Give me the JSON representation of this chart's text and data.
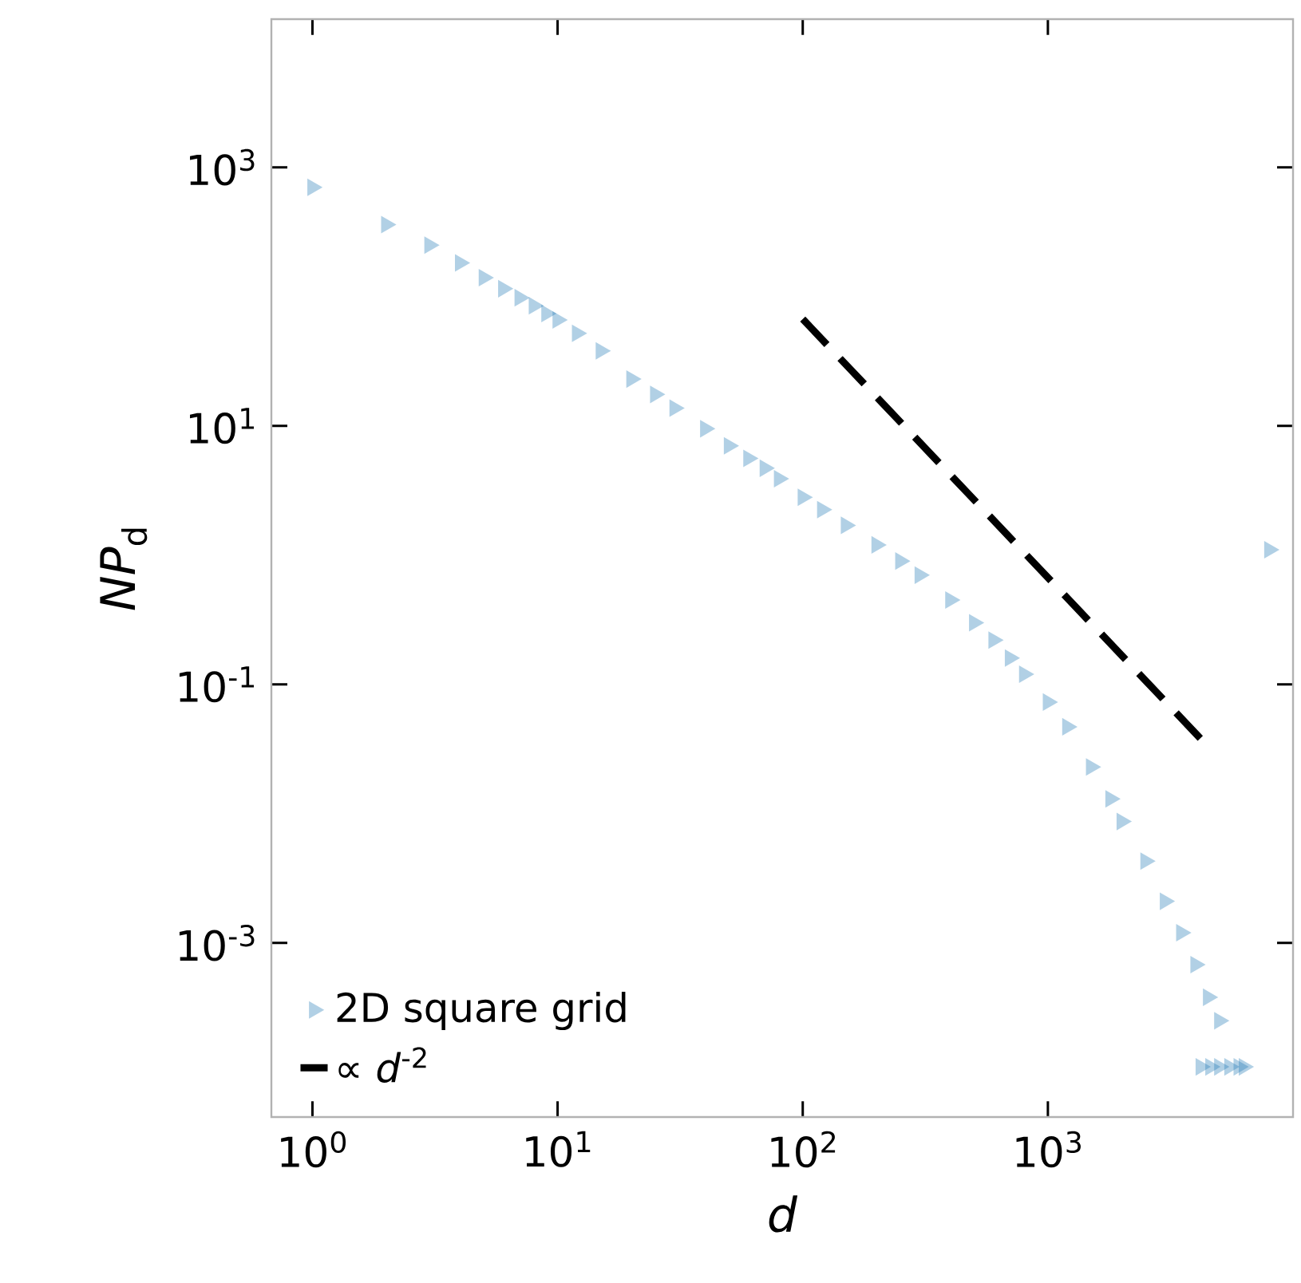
{
  "chart_data": {
    "type": "scatter",
    "xlabel": "*d*",
    "ylabel": "*NP*$_{d}$",
    "log": "xy",
    "xlim": [
      0.68,
      10000
    ],
    "ylim": [
      4.5e-05,
      14000
    ],
    "xticks": [
      {
        "value": 1,
        "label": "10$^{0}$"
      },
      {
        "value": 10,
        "label": "10$^{1}$"
      },
      {
        "value": 100,
        "label": "10$^{2}$"
      },
      {
        "value": 1000,
        "label": "10$^{3}$"
      }
    ],
    "yticks": [
      {
        "value": 0.001,
        "label": "10$^{-3}$"
      },
      {
        "value": 0.1,
        "label": "10$^{-1}$"
      },
      {
        "value": 10,
        "label": "10$^{1}$"
      },
      {
        "value": 1000,
        "label": "10$^{3}$"
      }
    ],
    "legend": "bottom left",
    "grid": false,
    "series": [
      {
        "name": "2D square grid",
        "marker": "triangle",
        "color": "#1f77b4",
        "x": [
          1,
          2,
          3,
          4,
          5,
          6,
          7,
          8,
          9,
          10,
          12,
          15,
          20,
          25,
          30,
          40,
          50,
          60,
          70,
          80,
          100,
          120,
          150,
          200,
          250,
          300,
          400,
          500,
          600,
          700,
          800,
          1000,
          1200,
          1500,
          1800,
          2000,
          2500,
          3000,
          3500,
          4000,
          4500,
          5000,
          4200,
          4600,
          5000,
          5500,
          6000,
          6300,
          8000
        ],
        "values": [
          700,
          360,
          250,
          182,
          140,
          115,
          98,
          85,
          74,
          66,
          52,
          38,
          23,
          17.5,
          13.7,
          9.5,
          7,
          5.6,
          4.7,
          3.9,
          2.8,
          2.25,
          1.7,
          1.2,
          0.9,
          0.7,
          0.45,
          0.3,
          0.22,
          0.16,
          0.12,
          0.073,
          0.047,
          0.023,
          0.013,
          0.0087,
          0.0043,
          0.0021,
          0.0012,
          0.00068,
          0.00038,
          0.00025,
          0.00011,
          0.00011,
          0.00011,
          0.00011,
          0.00011,
          0.00011,
          1.1
        ]
      },
      {
        "name": "∝ *d*$^{-2}$",
        "type": "line",
        "marker": "none",
        "line_style": "dashed",
        "color": "#000000",
        "x": [
          100,
          4200
        ],
        "values": [
          67,
          0.038
        ]
      }
    ]
  }
}
